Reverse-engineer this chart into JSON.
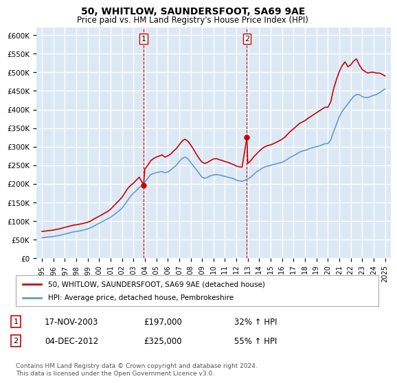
{
  "title": "50, WHITLOW, SAUNDERSFOOT, SA69 9AE",
  "subtitle": "Price paid vs. HM Land Registry's House Price Index (HPI)",
  "ylim": [
    0,
    620000
  ],
  "yticks": [
    0,
    50000,
    100000,
    150000,
    200000,
    250000,
    300000,
    350000,
    400000,
    450000,
    500000,
    550000,
    600000
  ],
  "background_color": "#ffffff",
  "plot_bg_color": "#dce9f5",
  "grid_color": "#ffffff",
  "legend_label_red": "50, WHITLOW, SAUNDERSFOOT, SA69 9AE (detached house)",
  "legend_label_blue": "HPI: Average price, detached house, Pembrokeshire",
  "annotation1_label": "1",
  "annotation1_date": "17-NOV-2003",
  "annotation1_price": "£197,000",
  "annotation1_hpi": "32% ↑ HPI",
  "annotation2_label": "2",
  "annotation2_date": "04-DEC-2012",
  "annotation2_price": "£325,000",
  "annotation2_hpi": "55% ↑ HPI",
  "footnote": "Contains HM Land Registry data © Crown copyright and database right 2024.\nThis data is licensed under the Open Government Licence v3.0.",
  "red_color": "#cc0000",
  "blue_color": "#6699cc",
  "vertical_line_color": "#cc0000",
  "marker1_x": 2003.88,
  "marker1_y": 197000,
  "marker2_x": 2012.92,
  "marker2_y": 325000,
  "hpi_dates": [
    1995,
    1995.25,
    1995.5,
    1995.75,
    1996,
    1996.25,
    1996.5,
    1996.75,
    1997,
    1997.25,
    1997.5,
    1997.75,
    1998,
    1998.25,
    1998.5,
    1998.75,
    1999,
    1999.25,
    1999.5,
    1999.75,
    2000,
    2000.25,
    2000.5,
    2000.75,
    2001,
    2001.25,
    2001.5,
    2001.75,
    2002,
    2002.25,
    2002.5,
    2002.75,
    2003,
    2003.25,
    2003.5,
    2003.75,
    2004,
    2004.25,
    2004.5,
    2004.75,
    2005,
    2005.25,
    2005.5,
    2005.75,
    2006,
    2006.25,
    2006.5,
    2006.75,
    2007,
    2007.25,
    2007.5,
    2007.75,
    2008,
    2008.25,
    2008.5,
    2008.75,
    2009,
    2009.25,
    2009.5,
    2009.75,
    2010,
    2010.25,
    2010.5,
    2010.75,
    2011,
    2011.25,
    2011.5,
    2011.75,
    2012,
    2012.25,
    2012.5,
    2012.75,
    2013,
    2013.25,
    2013.5,
    2013.75,
    2014,
    2014.25,
    2014.5,
    2014.75,
    2015,
    2015.25,
    2015.5,
    2015.75,
    2016,
    2016.25,
    2016.5,
    2016.75,
    2017,
    2017.25,
    2017.5,
    2017.75,
    2018,
    2018.25,
    2018.5,
    2018.75,
    2019,
    2019.25,
    2019.5,
    2019.75,
    2020,
    2020.25,
    2020.5,
    2020.75,
    2021,
    2021.25,
    2021.5,
    2021.75,
    2022,
    2022.25,
    2022.5,
    2022.75,
    2023,
    2023.25,
    2023.5,
    2023.75,
    2024,
    2024.25,
    2024.5,
    2024.75,
    2025
  ],
  "hpi_values": [
    55000,
    56000,
    57000,
    57500,
    58500,
    60000,
    61500,
    63000,
    65000,
    67000,
    69000,
    71000,
    72000,
    73500,
    75000,
    77000,
    79000,
    82000,
    86000,
    90000,
    94000,
    98000,
    102000,
    106000,
    110000,
    116000,
    122000,
    128000,
    135000,
    145000,
    156000,
    167000,
    175000,
    182000,
    190000,
    196000,
    205000,
    215000,
    225000,
    228000,
    230000,
    232000,
    233000,
    230000,
    232000,
    237000,
    244000,
    250000,
    260000,
    268000,
    272000,
    268000,
    258000,
    248000,
    238000,
    228000,
    218000,
    215000,
    218000,
    222000,
    224000,
    225000,
    224000,
    222000,
    220000,
    218000,
    216000,
    214000,
    210000,
    208000,
    207000,
    210000,
    213000,
    218000,
    225000,
    232000,
    237000,
    242000,
    246000,
    248000,
    250000,
    252000,
    254000,
    256000,
    258000,
    262000,
    267000,
    272000,
    276000,
    280000,
    285000,
    288000,
    290000,
    293000,
    296000,
    298000,
    300000,
    302000,
    305000,
    308000,
    308000,
    318000,
    340000,
    360000,
    380000,
    395000,
    405000,
    415000,
    425000,
    435000,
    440000,
    440000,
    435000,
    432000,
    432000,
    435000,
    438000,
    440000,
    445000,
    450000,
    455000
  ],
  "red_dates": [
    1995.0,
    1995.25,
    1995.5,
    1995.75,
    1996.0,
    1996.25,
    1996.5,
    1996.75,
    1997.0,
    1997.25,
    1997.5,
    1997.75,
    1998.0,
    1998.25,
    1998.5,
    1998.75,
    1999.0,
    1999.25,
    1999.5,
    1999.75,
    2000.0,
    2000.25,
    2000.5,
    2000.75,
    2001.0,
    2001.25,
    2001.5,
    2001.75,
    2002.0,
    2002.25,
    2002.5,
    2002.75,
    2003.0,
    2003.25,
    2003.5,
    2003.88,
    2004.0,
    2004.25,
    2004.5,
    2004.75,
    2005.0,
    2005.25,
    2005.5,
    2005.75,
    2006.0,
    2006.25,
    2006.5,
    2006.75,
    2007.0,
    2007.25,
    2007.5,
    2007.75,
    2008.0,
    2008.25,
    2008.5,
    2008.75,
    2009.0,
    2009.25,
    2009.5,
    2009.75,
    2010.0,
    2010.25,
    2010.5,
    2010.75,
    2011.0,
    2011.25,
    2011.5,
    2011.75,
    2012.0,
    2012.25,
    2012.5,
    2012.92,
    2013.0,
    2013.25,
    2013.5,
    2013.75,
    2014.0,
    2014.25,
    2014.5,
    2014.75,
    2015.0,
    2015.25,
    2015.5,
    2015.75,
    2016.0,
    2016.25,
    2016.5,
    2016.75,
    2017.0,
    2017.25,
    2017.5,
    2017.75,
    2018.0,
    2018.25,
    2018.5,
    2018.75,
    2019.0,
    2019.25,
    2019.5,
    2019.75,
    2020.0,
    2020.25,
    2020.5,
    2020.75,
    2021.0,
    2021.25,
    2021.5,
    2021.75,
    2022.0,
    2022.25,
    2022.5,
    2022.75,
    2023.0,
    2023.25,
    2023.5,
    2023.75,
    2024.0,
    2024.25,
    2024.5,
    2024.75,
    2025.0
  ],
  "red_values": [
    72000,
    73000,
    74000,
    75000,
    76000,
    77500,
    79000,
    81000,
    83000,
    85000,
    87000,
    89000,
    90000,
    91500,
    93000,
    95000,
    97000,
    100000,
    105000,
    109000,
    113000,
    117000,
    122000,
    126000,
    132000,
    140000,
    148000,
    156000,
    164000,
    176000,
    188000,
    196000,
    202000,
    210000,
    218000,
    197000,
    240000,
    250000,
    262000,
    268000,
    272000,
    275000,
    278000,
    272000,
    275000,
    280000,
    288000,
    295000,
    305000,
    315000,
    320000,
    315000,
    305000,
    293000,
    280000,
    268000,
    258000,
    255000,
    258000,
    263000,
    267000,
    268000,
    265000,
    263000,
    260000,
    258000,
    255000,
    252000,
    248000,
    246000,
    245000,
    325000,
    255000,
    262000,
    272000,
    280000,
    288000,
    295000,
    300000,
    303000,
    305000,
    308000,
    312000,
    316000,
    320000,
    326000,
    334000,
    342000,
    348000,
    355000,
    362000,
    366000,
    370000,
    376000,
    381000,
    386000,
    391000,
    396000,
    401000,
    406000,
    406000,
    420000,
    455000,
    480000,
    502000,
    518000,
    528000,
    515000,
    520000,
    530000,
    536000,
    520000,
    508000,
    502000,
    498000,
    500000,
    500000,
    498000,
    498000,
    495000,
    490000
  ],
  "xticks": [
    1995,
    1996,
    1997,
    1998,
    1999,
    2000,
    2001,
    2002,
    2003,
    2004,
    2005,
    2006,
    2007,
    2008,
    2009,
    2010,
    2011,
    2012,
    2013,
    2014,
    2015,
    2016,
    2017,
    2018,
    2019,
    2020,
    2021,
    2022,
    2023,
    2024,
    2025
  ],
  "xlim": [
    1994.5,
    2025.5
  ]
}
